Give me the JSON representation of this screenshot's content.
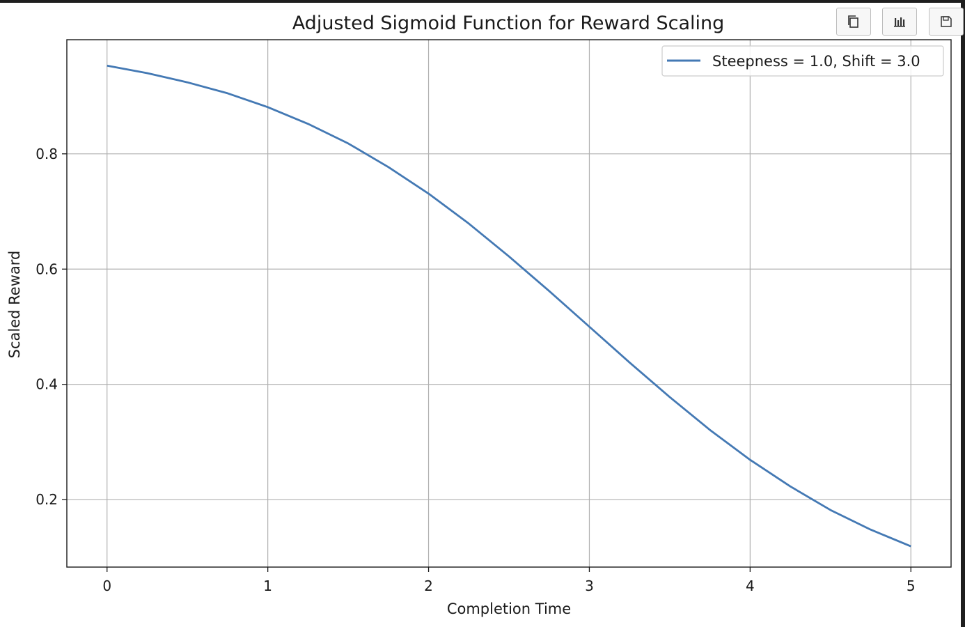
{
  "toolbar": {
    "buttons": [
      {
        "icon": "copy-icon"
      },
      {
        "icon": "chart-icon"
      },
      {
        "icon": "save-icon"
      }
    ]
  },
  "chart_data": {
    "type": "line",
    "title": "Adjusted Sigmoid Function for Reward Scaling",
    "xlabel": "Completion Time",
    "ylabel": "Scaled Reward",
    "xlim": [
      -0.25,
      5.25
    ],
    "ylim": [
      0.083,
      0.998
    ],
    "xticks": [
      0,
      1,
      2,
      3,
      4,
      5
    ],
    "xtick_labels": [
      "0",
      "1",
      "2",
      "3",
      "4",
      "5"
    ],
    "yticks": [
      0.2,
      0.4,
      0.6,
      0.8
    ],
    "ytick_labels": [
      "0.2",
      "0.4",
      "0.6",
      "0.8"
    ],
    "grid": true,
    "legend_position": "top-right",
    "series": [
      {
        "name": "Steepness = 1.0, Shift = 3.0",
        "color": "#4479b4",
        "x": [
          0,
          0.25,
          0.5,
          0.75,
          1,
          1.25,
          1.5,
          1.75,
          2,
          2.25,
          2.5,
          2.75,
          3,
          3.25,
          3.5,
          3.75,
          4,
          4.25,
          4.5,
          4.75,
          5
        ],
        "y": [
          0.953,
          0.94,
          0.924,
          0.905,
          0.881,
          0.852,
          0.818,
          0.777,
          0.731,
          0.679,
          0.622,
          0.562,
          0.5,
          0.438,
          0.378,
          0.321,
          0.269,
          0.223,
          0.182,
          0.148,
          0.119
        ]
      }
    ]
  }
}
